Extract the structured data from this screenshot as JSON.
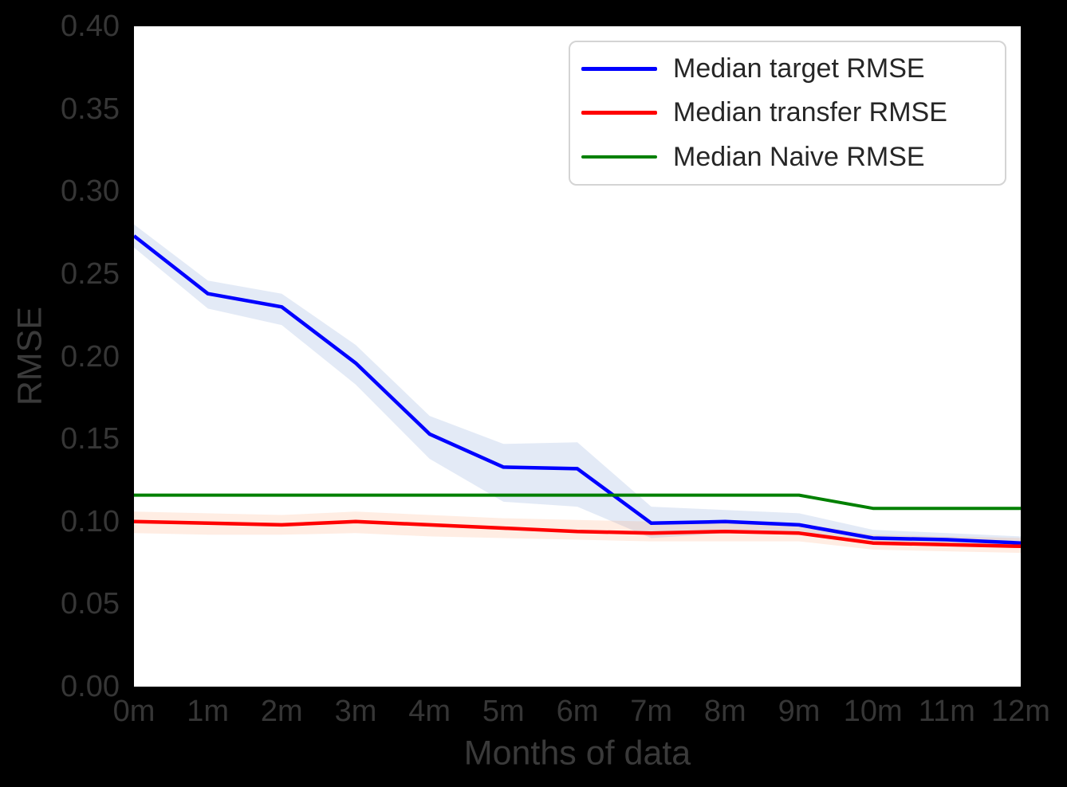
{
  "figure": {
    "background": "#000000",
    "plot_background": "#ffffff",
    "tick_text_color": "#363636",
    "axis_label_color": "#3a3a3a",
    "legend_background": "#ffffff",
    "legend_border_color": "#d4d4d4",
    "legend_text_color": "#262626"
  },
  "chart_data": {
    "type": "line",
    "xlabel": "Months of data",
    "ylabel": "RMSE",
    "ylim": [
      0.0,
      0.4
    ],
    "grid": false,
    "legend_position": "upper right",
    "categories": [
      "0m",
      "1m",
      "2m",
      "3m",
      "4m",
      "5m",
      "6m",
      "7m",
      "8m",
      "9m",
      "10m",
      "11m",
      "12m"
    ],
    "y_tick_labels": [
      "0.00",
      "0.05",
      "0.10",
      "0.15",
      "0.20",
      "0.25",
      "0.30",
      "0.35",
      "0.40"
    ],
    "series": [
      {
        "id": "target",
        "name": "Median target RMSE",
        "color": "#0000ff",
        "line_width": 4.5,
        "values": [
          0.273,
          0.238,
          0.23,
          0.196,
          0.153,
          0.133,
          0.132,
          0.099,
          0.1,
          0.098,
          0.09,
          0.089,
          0.087
        ],
        "band_upper": [
          0.28,
          0.246,
          0.238,
          0.207,
          0.164,
          0.147,
          0.148,
          0.109,
          0.107,
          0.105,
          0.095,
          0.093,
          0.091
        ],
        "band_lower": [
          0.266,
          0.229,
          0.219,
          0.183,
          0.138,
          0.112,
          0.109,
          0.09,
          0.093,
          0.092,
          0.086,
          0.085,
          0.084
        ],
        "band_color": "rgba(90,130,200,0.17)"
      },
      {
        "id": "transfer",
        "name": "Median transfer RMSE",
        "color": "#ff0000",
        "line_width": 4.5,
        "values": [
          0.1,
          0.099,
          0.098,
          0.1,
          0.098,
          0.096,
          0.094,
          0.093,
          0.094,
          0.093,
          0.087,
          0.086,
          0.085
        ],
        "band_upper": [
          0.106,
          0.105,
          0.104,
          0.106,
          0.104,
          0.102,
          0.101,
          0.1,
          0.1,
          0.099,
          0.092,
          0.091,
          0.09
        ],
        "band_lower": [
          0.093,
          0.092,
          0.092,
          0.093,
          0.091,
          0.09,
          0.089,
          0.088,
          0.088,
          0.088,
          0.083,
          0.082,
          0.081
        ],
        "band_color": "rgba(255,130,60,0.14)"
      },
      {
        "id": "naive",
        "name": "Median Naive RMSE",
        "color": "#008000",
        "line_width": 4,
        "values": [
          0.116,
          0.116,
          0.116,
          0.116,
          0.116,
          0.116,
          0.116,
          0.116,
          0.116,
          0.116,
          0.108,
          0.108,
          0.108
        ]
      }
    ]
  }
}
